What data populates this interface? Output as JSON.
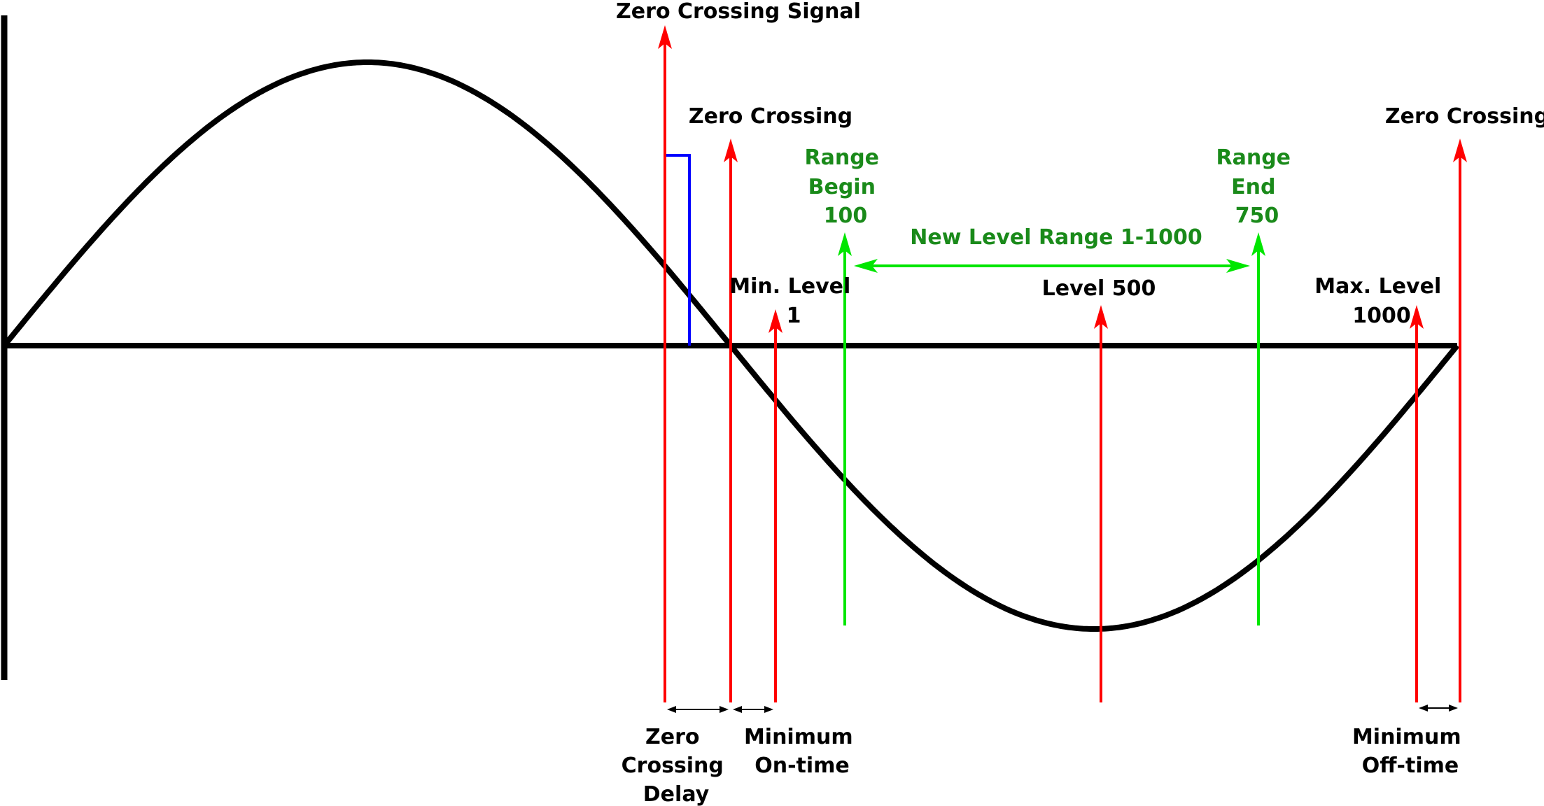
{
  "labels": {
    "zero_crossing_signal": "Zero Crossing Signal",
    "zero_crossing_left": "Zero Crossing",
    "zero_crossing_right": "Zero Crossing",
    "range_begin": [
      "Range",
      "Begin",
      "100"
    ],
    "range_end": [
      "Range",
      "End",
      "750"
    ],
    "new_level_range": "New Level Range 1-1000",
    "min_level": [
      "Min. Level",
      "1"
    ],
    "level_500": "Level 500",
    "max_level": [
      "Max. Level",
      "1000"
    ],
    "zero_crossing_delay": [
      "Zero",
      "Crossing",
      "Delay"
    ],
    "minimum_on_time": [
      "Minimum",
      "On-time"
    ],
    "minimum_off_time": [
      "Minimum",
      "Off-time"
    ]
  },
  "colors": {
    "waveform": "#000000",
    "red_marker": "#ff0000",
    "green_marker": "#00e600",
    "green_text": "#1a8a1a",
    "blue_pulse": "#0000ff"
  }
}
